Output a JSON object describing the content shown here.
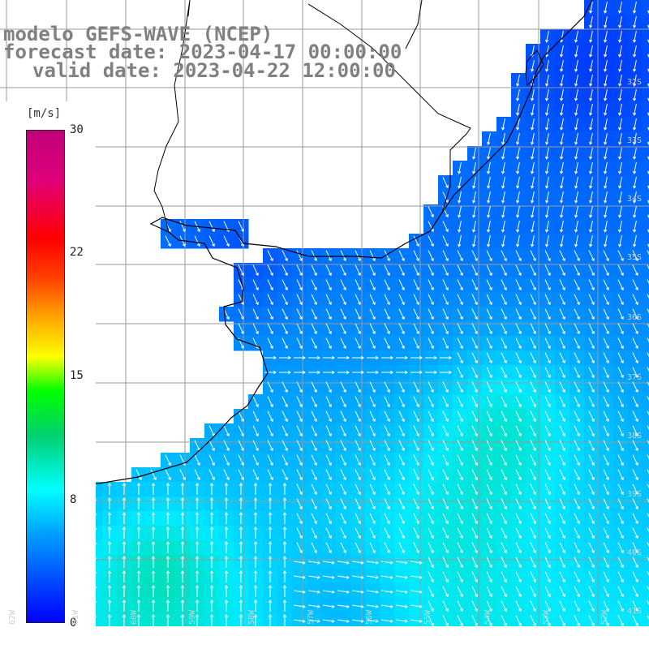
{
  "title": {
    "line1": "modelo GEFS-WAVE (NCEP)",
    "line2": "forecast date: 2023-04-17 00:00:00",
    "line3": "valid date: 2023-04-22 12:00:00"
  },
  "colorbar": {
    "unit": "[m/s]",
    "min": 0,
    "max": 30,
    "ticks": [
      "30",
      "22",
      "15",
      "8",
      "0"
    ]
  },
  "lat_labels": [
    "32S",
    "33S",
    "34S",
    "35S",
    "36S",
    "37S",
    "38S",
    "39S",
    "40S",
    "41S"
  ],
  "lon_labels": [
    "62W",
    "61W",
    "60W",
    "59W",
    "58W",
    "57W",
    "56W",
    "55W",
    "54W",
    "53W",
    "52W"
  ],
  "colors": {
    "land": "#ffffff",
    "coast": "#000000",
    "grid": "#9a9a9a",
    "arrow": "#ffffff",
    "title_text": "#808080"
  }
}
